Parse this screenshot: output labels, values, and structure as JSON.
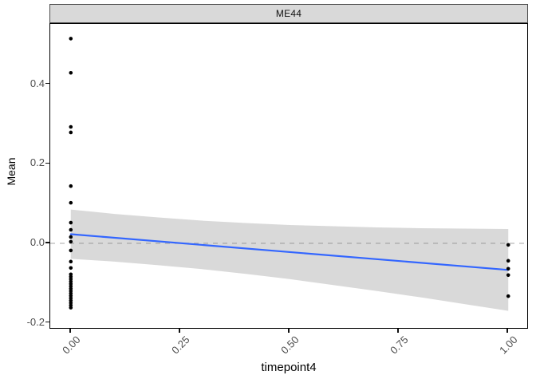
{
  "chart_data": {
    "type": "scatter",
    "facet_title": "ME44",
    "xlabel": "timepoint4",
    "ylabel": "Mean",
    "xlim": [
      -0.047,
      1.047
    ],
    "ylim": [
      -0.217,
      0.552
    ],
    "x_ticks": [
      "0.00",
      "0.25",
      "0.50",
      "0.75",
      "1.00"
    ],
    "x_tick_values": [
      0,
      0.25,
      0.5,
      0.75,
      1.0
    ],
    "y_ticks": [
      "0.4",
      "0.2",
      "0.0",
      "-0.2"
    ],
    "y_tick_values": [
      0.4,
      0.2,
      0.0,
      -0.2
    ],
    "grid": "off",
    "panel_background": "#FFFFFF",
    "strip_fill": "#D9D9D9",
    "point_color": "#000000",
    "point_radius": 2.3,
    "reference_line": {
      "y": 0,
      "style": "dashed",
      "color": "#BEBEBE"
    },
    "points": {
      "groups": [
        {
          "x": 0,
          "values": [
            0.515,
            0.429,
            0.293,
            0.279,
            0.144,
            0.102,
            0.052,
            0.034,
            0.016,
            0.004,
            -0.018,
            -0.046,
            -0.062,
            -0.078,
            -0.084,
            -0.09,
            -0.096,
            -0.102,
            -0.108,
            -0.114,
            -0.12,
            -0.126,
            -0.132,
            -0.138,
            -0.144,
            -0.15,
            -0.156,
            -0.162
          ]
        },
        {
          "x": 1,
          "values": [
            -0.004,
            -0.044,
            -0.064,
            -0.08,
            -0.133
          ]
        }
      ]
    },
    "smooth": {
      "color": "#3366FF",
      "line_width": 2.2,
      "line": {
        "x": [
          0,
          1
        ],
        "y": [
          0.023,
          -0.067
        ]
      },
      "ci_band": {
        "fill": "rgba(128,128,128,0.30)",
        "x": [
          0.0,
          0.1,
          0.2,
          0.3,
          0.4,
          0.5,
          0.6,
          0.7,
          0.8,
          0.9,
          1.0
        ],
        "upper": [
          0.085,
          0.074,
          0.065,
          0.057,
          0.051,
          0.046,
          0.043,
          0.04,
          0.038,
          0.037,
          0.036
        ],
        "lower": [
          -0.039,
          -0.046,
          -0.055,
          -0.065,
          -0.077,
          -0.09,
          -0.105,
          -0.12,
          -0.136,
          -0.153,
          -0.17
        ]
      }
    }
  }
}
